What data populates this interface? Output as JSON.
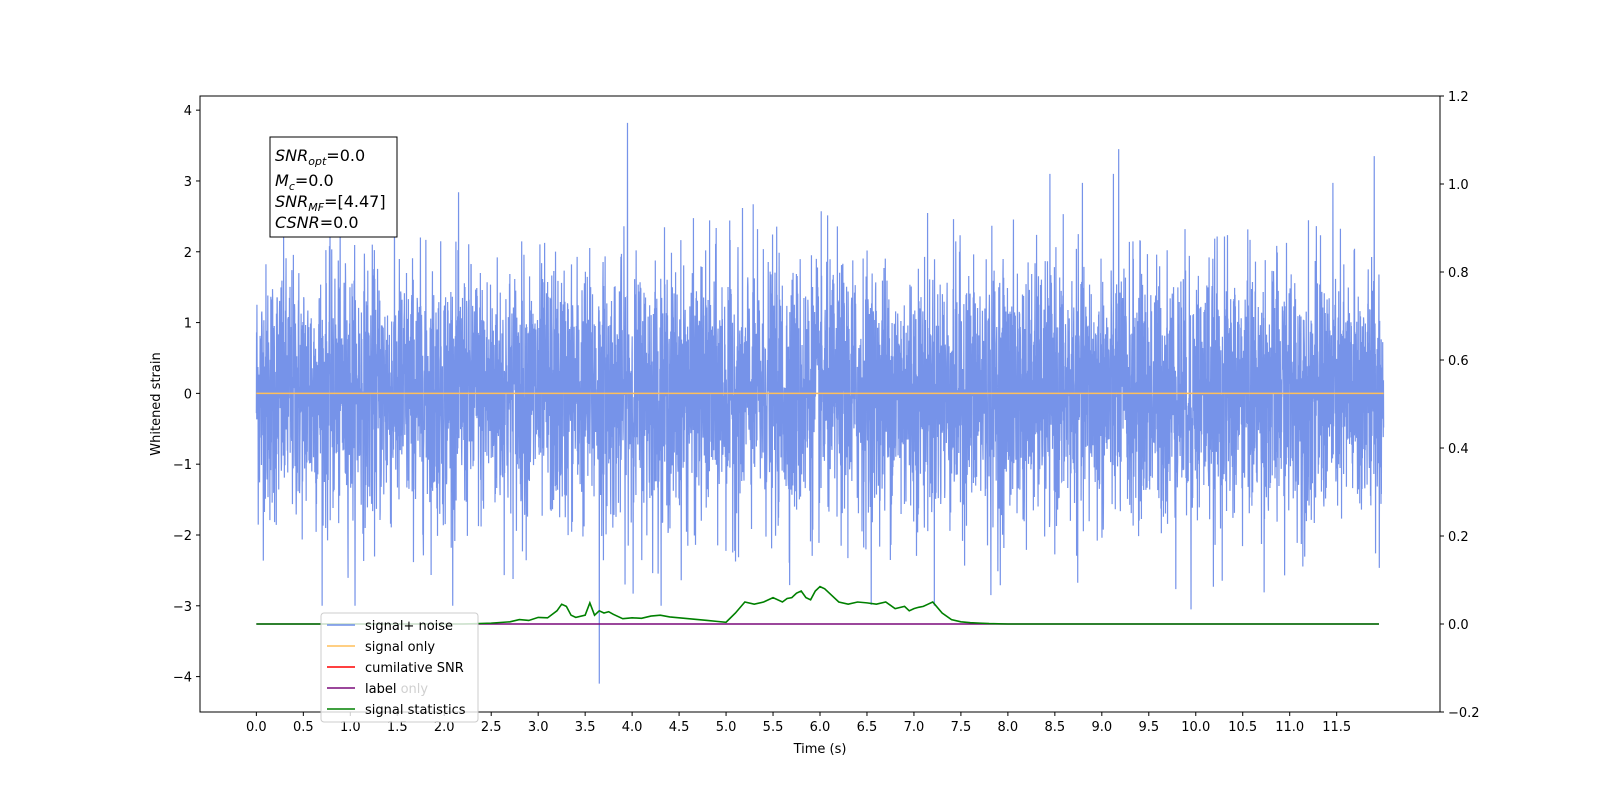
{
  "chart_data": {
    "type": "line",
    "xlabel": "Time (s)",
    "ylabel": "Whitened strain",
    "xlim": [
      -0.6,
      12.6
    ],
    "ylim": [
      -4.5,
      4.2
    ],
    "y2lim": [
      -0.2,
      1.2
    ],
    "x_ticks": [
      0.0,
      0.5,
      1.0,
      1.5,
      2.0,
      2.5,
      3.0,
      3.5,
      4.0,
      4.5,
      5.0,
      5.5,
      6.0,
      6.5,
      7.0,
      7.5,
      8.0,
      8.5,
      9.0,
      9.5,
      10.0,
      10.5,
      11.0,
      11.5
    ],
    "x_tick_labels": [
      "0.0",
      "0.5",
      "1.0",
      "1.5",
      "2.0",
      "2.5",
      "3.0",
      "3.5",
      "4.0",
      "4.5",
      "5.0",
      "5.5",
      "6.0",
      "6.5",
      "7.0",
      "7.5",
      "8.0",
      "8.5",
      "9.0",
      "9.5",
      "10.0",
      "10.5",
      "11.0",
      "11.5"
    ],
    "y_ticks": [
      4,
      3,
      2,
      1,
      0,
      -1,
      -2,
      -3,
      -4
    ],
    "y_tick_labels": [
      "4",
      "3",
      "2",
      "1",
      "0",
      "−1",
      "−2",
      "−3",
      "−4"
    ],
    "y2_ticks": [
      1.2,
      1.0,
      0.8,
      0.6,
      0.4,
      0.2,
      0.0,
      -0.2
    ],
    "y2_tick_labels": [
      "1.2",
      "1.0",
      "0.8",
      "0.6",
      "0.4",
      "0.2",
      "0.0",
      "−0.2"
    ],
    "grid": false,
    "legend_position": "lower-left",
    "series": [
      {
        "name": "signal+ noise",
        "color": "#6f8de8",
        "axis": "left",
        "kind": "noise",
        "x_range": [
          0.0,
          12.0
        ],
        "approx_std": 0.9,
        "extremes": [
          [
            3.95,
            3.82
          ],
          [
            3.65,
            -4.1
          ],
          [
            7.82,
            -2.85
          ],
          [
            9.95,
            -3.05
          ],
          [
            9.18,
            3.45
          ],
          [
            11.9,
            3.35
          ]
        ]
      },
      {
        "name": "signal only",
        "color": "#ffbf5a",
        "axis": "left",
        "x": [
          0.0,
          12.0
        ],
        "y": [
          0.0,
          0.0
        ]
      },
      {
        "name": "cumilative SNR",
        "color": "#ff0000",
        "axis": "right",
        "x": [],
        "y": []
      },
      {
        "name": "label",
        "color": "#7a0a7a",
        "axis": "right",
        "x": [
          0.0,
          11.95
        ],
        "y": [
          0.0,
          0.0
        ]
      },
      {
        "name": "label only",
        "color": "#ffffff",
        "axis": "right",
        "x": [],
        "y": []
      },
      {
        "name": "signal statistics",
        "color": "#008000",
        "axis": "right",
        "x": [
          0.0,
          2.2,
          2.5,
          2.7,
          2.8,
          2.9,
          3.0,
          3.1,
          3.2,
          3.25,
          3.3,
          3.35,
          3.4,
          3.5,
          3.55,
          3.6,
          3.65,
          3.7,
          3.75,
          3.8,
          3.9,
          4.0,
          4.1,
          4.2,
          4.3,
          4.4,
          4.5,
          4.6,
          4.7,
          4.8,
          4.9,
          5.0,
          5.1,
          5.2,
          5.3,
          5.4,
          5.5,
          5.6,
          5.65,
          5.7,
          5.75,
          5.8,
          5.85,
          5.9,
          5.95,
          6.0,
          6.05,
          6.1,
          6.2,
          6.3,
          6.4,
          6.5,
          6.6,
          6.7,
          6.8,
          6.9,
          6.95,
          7.0,
          7.05,
          7.1,
          7.15,
          7.2,
          7.3,
          7.4,
          7.5,
          7.6,
          7.7,
          7.8,
          8.0,
          8.5,
          9.0,
          10.0,
          11.0,
          11.95
        ],
        "y": [
          0.0,
          0.0,
          0.002,
          0.005,
          0.01,
          0.008,
          0.015,
          0.014,
          0.03,
          0.045,
          0.04,
          0.02,
          0.015,
          0.02,
          0.048,
          0.02,
          0.03,
          0.025,
          0.028,
          0.022,
          0.012,
          0.014,
          0.013,
          0.018,
          0.02,
          0.016,
          0.014,
          0.012,
          0.01,
          0.008,
          0.006,
          0.004,
          0.025,
          0.05,
          0.045,
          0.05,
          0.06,
          0.05,
          0.058,
          0.06,
          0.07,
          0.075,
          0.06,
          0.055,
          0.075,
          0.085,
          0.08,
          0.07,
          0.05,
          0.045,
          0.05,
          0.048,
          0.045,
          0.05,
          0.035,
          0.04,
          0.03,
          0.035,
          0.038,
          0.04,
          0.045,
          0.05,
          0.025,
          0.01,
          0.005,
          0.003,
          0.002,
          0.001,
          0.0,
          0.0,
          0.0,
          0.0,
          0.0,
          0.0
        ]
      }
    ]
  },
  "annotation": {
    "lines": [
      {
        "base": "SNR",
        "sub": "opt",
        "value": "=0.0"
      },
      {
        "base": "M",
        "sub": "c",
        "value": "=0.0"
      },
      {
        "base": "SNR",
        "sub": "MF",
        "value": "=[4.47]"
      },
      {
        "base": "CSNR",
        "sub": "",
        "value": "=0.0"
      }
    ]
  }
}
